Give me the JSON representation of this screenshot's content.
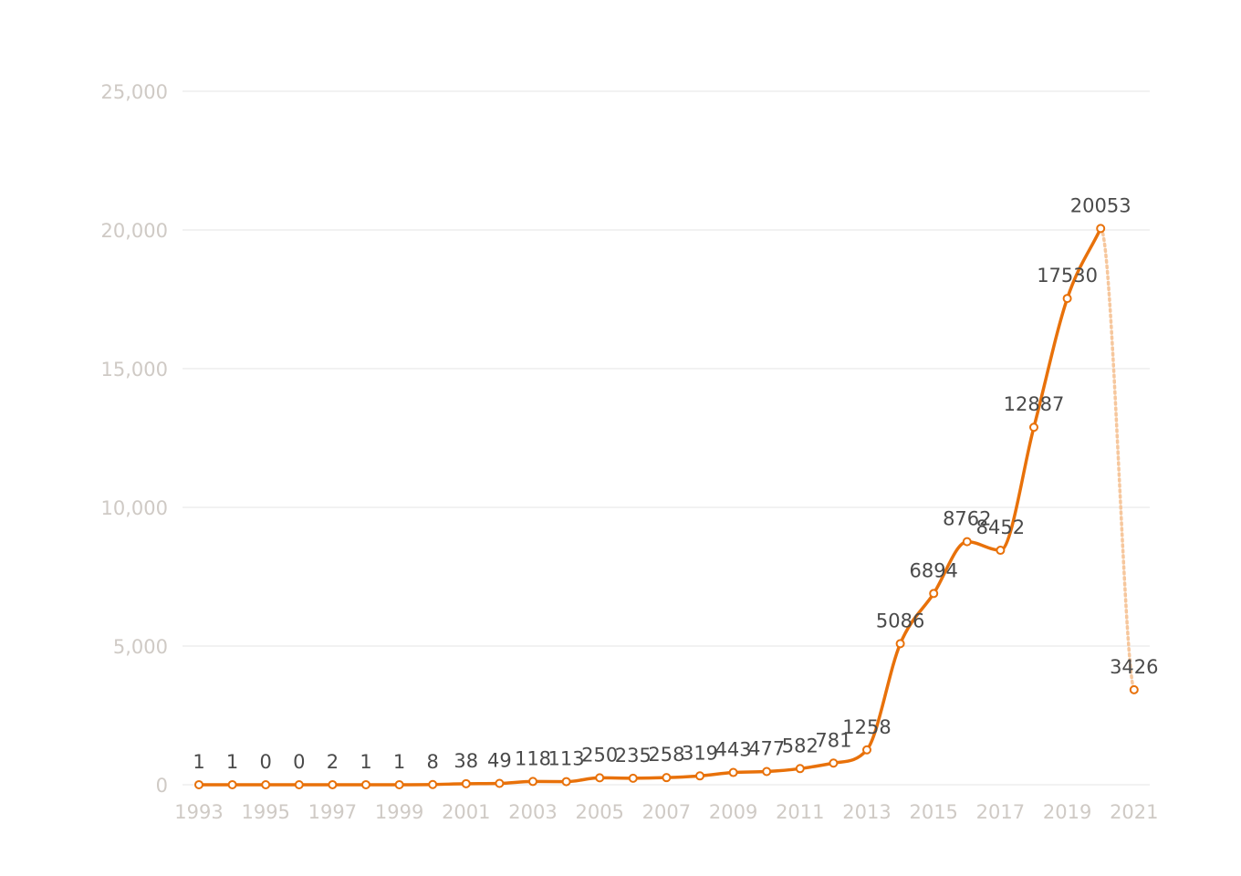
{
  "chart_data": {
    "type": "line",
    "title": "",
    "xlabel": "",
    "ylabel": "",
    "ylim": [
      0,
      25000
    ],
    "yticks": [
      0,
      5000,
      10000,
      15000,
      20000,
      25000
    ],
    "ytick_labels": [
      "0",
      "5,000",
      "10,000",
      "15,000",
      "20,000",
      "25,000"
    ],
    "xtick_labels": [
      "1993",
      "1995",
      "1997",
      "1999",
      "2001",
      "2003",
      "2005",
      "2007",
      "2009",
      "2011",
      "2013",
      "2015",
      "2017",
      "2019",
      "2021"
    ],
    "grid": true,
    "legend": "none",
    "colors": {
      "line": "#e8710a",
      "projection": "#f6c79d",
      "marker_fill": "#ffffff",
      "grid": "#eeeeee",
      "tick_text": "#cfcac5",
      "label_text": "#4a4a4a"
    },
    "x": [
      1993,
      1994,
      1995,
      1996,
      1997,
      1998,
      1999,
      2000,
      2001,
      2002,
      2003,
      2004,
      2005,
      2006,
      2007,
      2008,
      2009,
      2010,
      2011,
      2012,
      2013,
      2014,
      2015,
      2016,
      2017,
      2018,
      2019,
      2020,
      2021
    ],
    "series": [
      {
        "values": [
          1,
          1,
          0,
          0,
          2,
          1,
          1,
          8,
          38,
          49,
          118,
          113,
          250,
          235,
          258,
          319,
          443,
          477,
          582,
          781,
          1258,
          5086,
          6894,
          8762,
          8452,
          12887,
          17530,
          20053,
          3426
        ],
        "labels": [
          "1",
          "1",
          "0",
          "0",
          "2",
          "1",
          "1",
          "8",
          "38",
          "49",
          "118",
          "113",
          "250",
          "235",
          "258",
          "319",
          "443",
          "477",
          "582",
          "781",
          "1258",
          "5086",
          "6894",
          "8762",
          "8452",
          "12887",
          "17530",
          "20053",
          "3426"
        ],
        "last_segment_style": "dotted"
      }
    ]
  }
}
